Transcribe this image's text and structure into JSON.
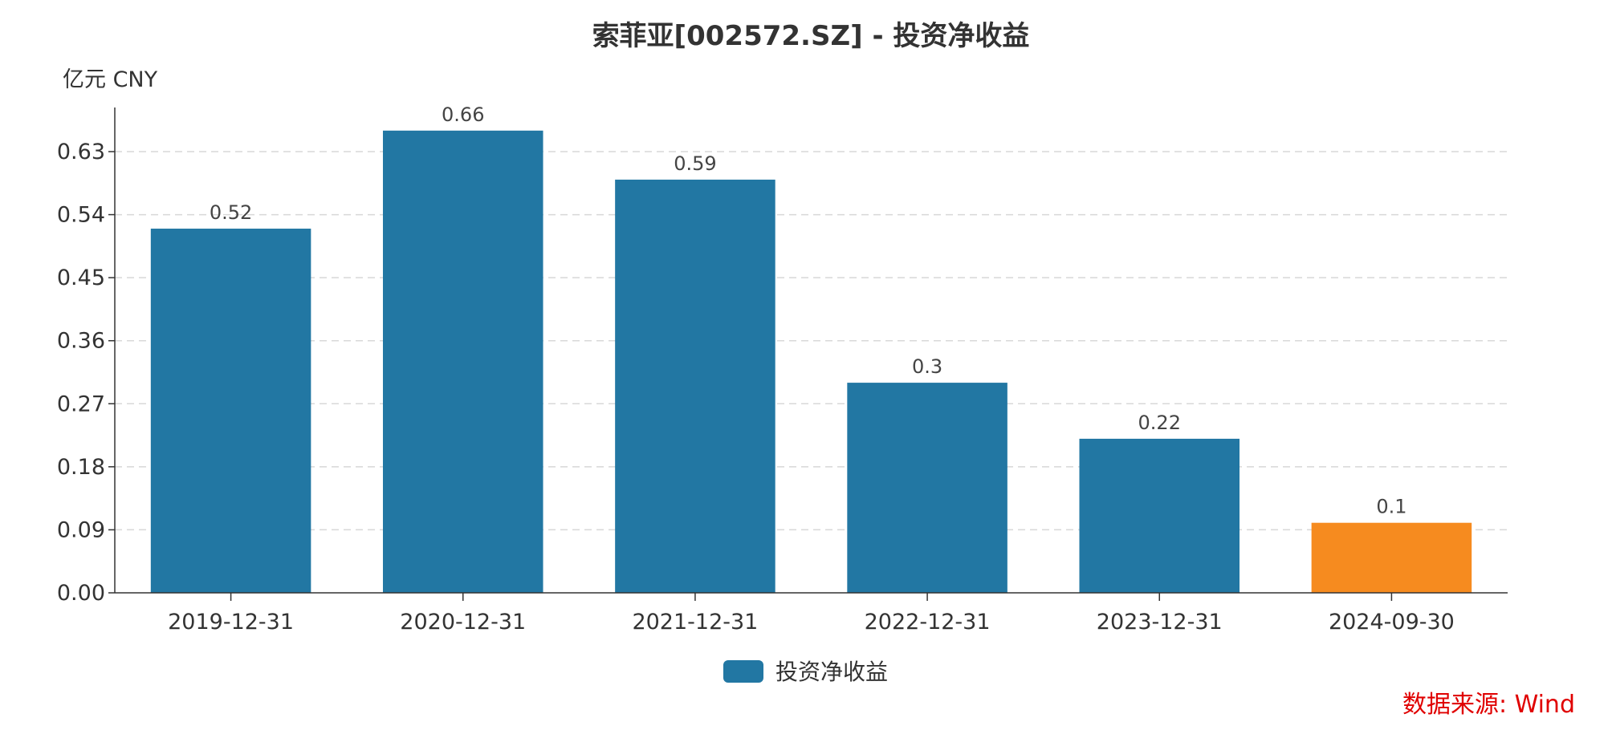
{
  "chart_data": {
    "type": "bar",
    "title": "索菲亚[002572.SZ] - 投资净收益",
    "unit": "亿元  CNY",
    "categories": [
      "2019-12-31",
      "2020-12-31",
      "2021-12-31",
      "2022-12-31",
      "2023-12-31",
      "2024-09-30"
    ],
    "series": [
      {
        "name": "投资净收益",
        "values": [
          0.52,
          0.66,
          0.59,
          0.3,
          0.22,
          0.1
        ]
      }
    ],
    "data_labels": [
      "0.52",
      "0.66",
      "0.59",
      "0.3",
      "0.22",
      "0.1"
    ],
    "yticks": [
      "0.00",
      "0.09",
      "0.18",
      "0.27",
      "0.36",
      "0.45",
      "0.54",
      "0.63"
    ],
    "ylim": [
      0,
      0.693
    ],
    "grid": "horizontal-dashed",
    "legend_position": "bottom-center",
    "colors": {
      "bar": "#2277a3",
      "highlight": "#f68b1f",
      "grid": "#d8d8d8",
      "axis": "#333333"
    },
    "highlight_index": 5,
    "source": "数据来源: Wind"
  }
}
